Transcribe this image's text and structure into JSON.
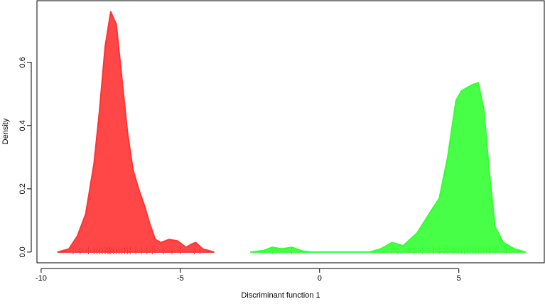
{
  "chart_data": {
    "type": "density",
    "xlabel": "Discriminant function 1",
    "ylabel": "Density",
    "xlim": [
      -10.15,
      8.07
    ],
    "ylim": [
      -0.034,
      0.795
    ],
    "xticks": [
      -10,
      -5,
      0,
      5
    ],
    "yticks": [
      {
        "value": 0,
        "label": "0.0"
      },
      0.2,
      0.4,
      0.6
    ],
    "series": [
      {
        "color": "#ff3333",
        "x": [
          -9.4,
          -9.0,
          -8.7,
          -8.4,
          -8.1,
          -7.9,
          -7.7,
          -7.5,
          -7.3,
          -7.1,
          -6.9,
          -6.7,
          -6.5,
          -6.3,
          -6.1,
          -5.9,
          -5.7,
          -5.4,
          -5.1,
          -4.8,
          -4.6,
          -4.45,
          -4.2,
          -3.8
        ],
        "values": [
          0,
          0.01,
          0.05,
          0.12,
          0.28,
          0.45,
          0.65,
          0.76,
          0.72,
          0.55,
          0.38,
          0.26,
          0.2,
          0.15,
          0.09,
          0.04,
          0.03,
          0.04,
          0.035,
          0.015,
          0.025,
          0.03,
          0.01,
          0
        ],
        "rug": [
          -8.85,
          -8.6,
          -8.3,
          -8.1,
          -8.0,
          -7.9,
          -7.8,
          -7.7,
          -7.6,
          -7.55,
          -7.5,
          -7.4,
          -7.3,
          -7.2,
          -7.1,
          -7.0,
          -6.9,
          -6.8,
          -6.6,
          -6.4,
          -6.2,
          -6.0,
          -5.6,
          -5.3,
          -5.0,
          -4.5,
          -4.3
        ]
      },
      {
        "color": "#33ff33",
        "x": [
          -2.47,
          -2.0,
          -1.7,
          -1.35,
          -1.0,
          -0.6,
          -0.3,
          1.8,
          2.2,
          2.6,
          3.0,
          3.5,
          4.0,
          4.3,
          4.6,
          4.9,
          5.1,
          5.3,
          5.5,
          5.7,
          5.9,
          6.1,
          6.3,
          6.6,
          7.0,
          7.4
        ],
        "values": [
          0,
          0.005,
          0.015,
          0.01,
          0.015,
          0.003,
          0,
          0,
          0.01,
          0.03,
          0.02,
          0.06,
          0.13,
          0.17,
          0.3,
          0.48,
          0.51,
          0.52,
          0.53,
          0.535,
          0.45,
          0.25,
          0.08,
          0.03,
          0.01,
          0
        ],
        "rug": [
          -1.7,
          -1.0,
          2.6,
          2.8,
          3.4,
          3.7,
          3.9,
          4.1,
          4.3,
          4.5,
          4.6,
          4.8,
          4.9,
          5.0,
          5.1,
          5.2,
          5.3,
          5.4,
          5.5,
          5.6,
          5.7,
          5.8,
          5.9,
          6.0,
          6.1,
          6.3,
          6.7
        ]
      }
    ]
  }
}
